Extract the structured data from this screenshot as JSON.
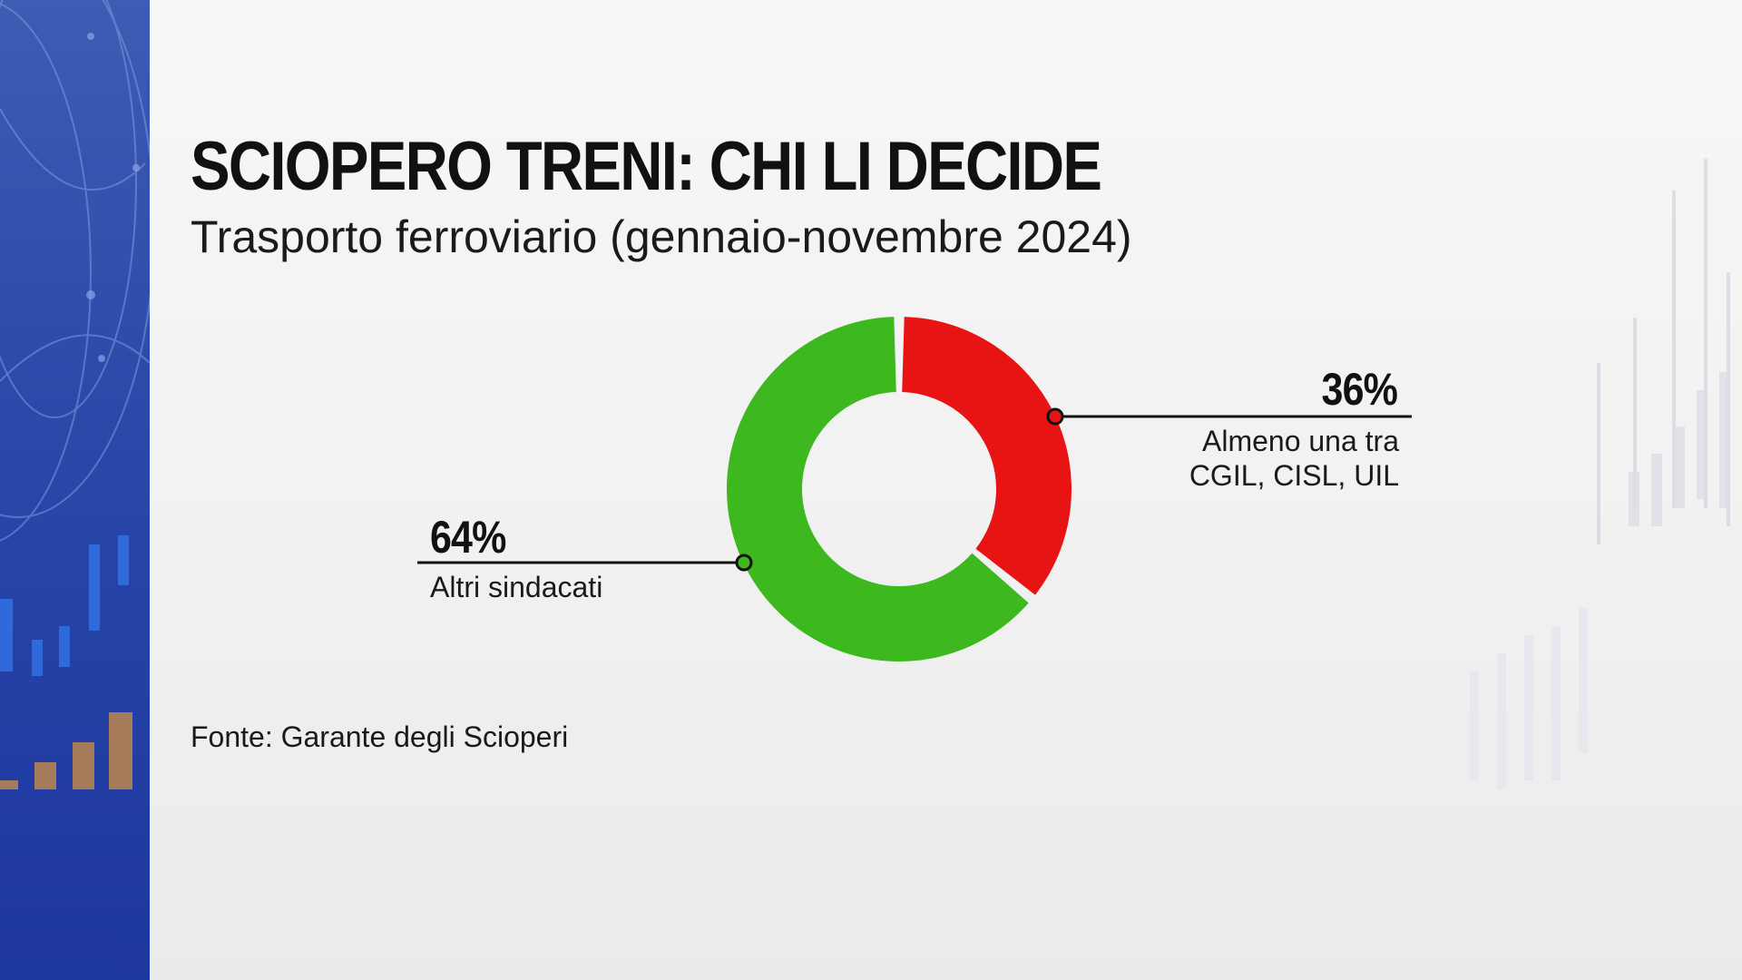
{
  "title": "SCIOPERO TRENI: CHI LI DECIDE",
  "subtitle": "Trasporto ferroviario (gennaio-novembre 2024)",
  "source": "Fonte: Garante degli Scioperi",
  "colors": {
    "red": "#e81414",
    "green": "#3db81e",
    "panel_blue": "#2b47a8"
  },
  "chart_data": {
    "type": "pie",
    "variant": "donut",
    "title": "SCIOPERO TRENI: CHI LI DECIDE",
    "subtitle": "Trasporto ferroviario (gennaio-novembre 2024)",
    "slices": [
      {
        "label_lines": [
          "Almeno una tra",
          "CGIL, CISL, UIL"
        ],
        "value": 36,
        "value_label": "36%",
        "color": "#e81414"
      },
      {
        "label_lines": [
          "Altri sindacati"
        ],
        "value": 64,
        "value_label": "64%",
        "color": "#3db81e"
      }
    ]
  }
}
